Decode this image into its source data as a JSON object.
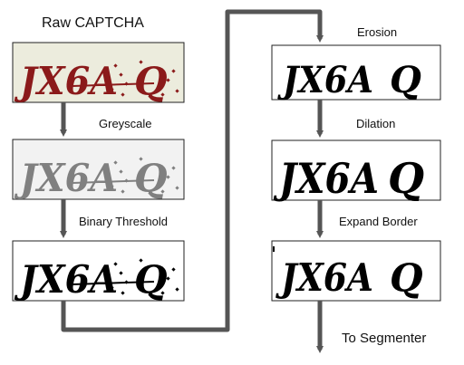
{
  "labels": {
    "raw": "Raw CAPTCHA",
    "greyscale": "Greyscale",
    "binary": "Binary Threshold",
    "erosion": "Erosion",
    "dilation": "Dilation",
    "expand": "Expand Border",
    "segmenter": "To Segmenter"
  },
  "captcha_text": "JX6A Q",
  "colors": {
    "arrow": "#555555",
    "raw_ink": "#8b1a1a",
    "raw_bg": "#ececdd",
    "grey_ink": "#808080",
    "grey_bg": "#f2f2f2",
    "black_ink": "#000000"
  }
}
